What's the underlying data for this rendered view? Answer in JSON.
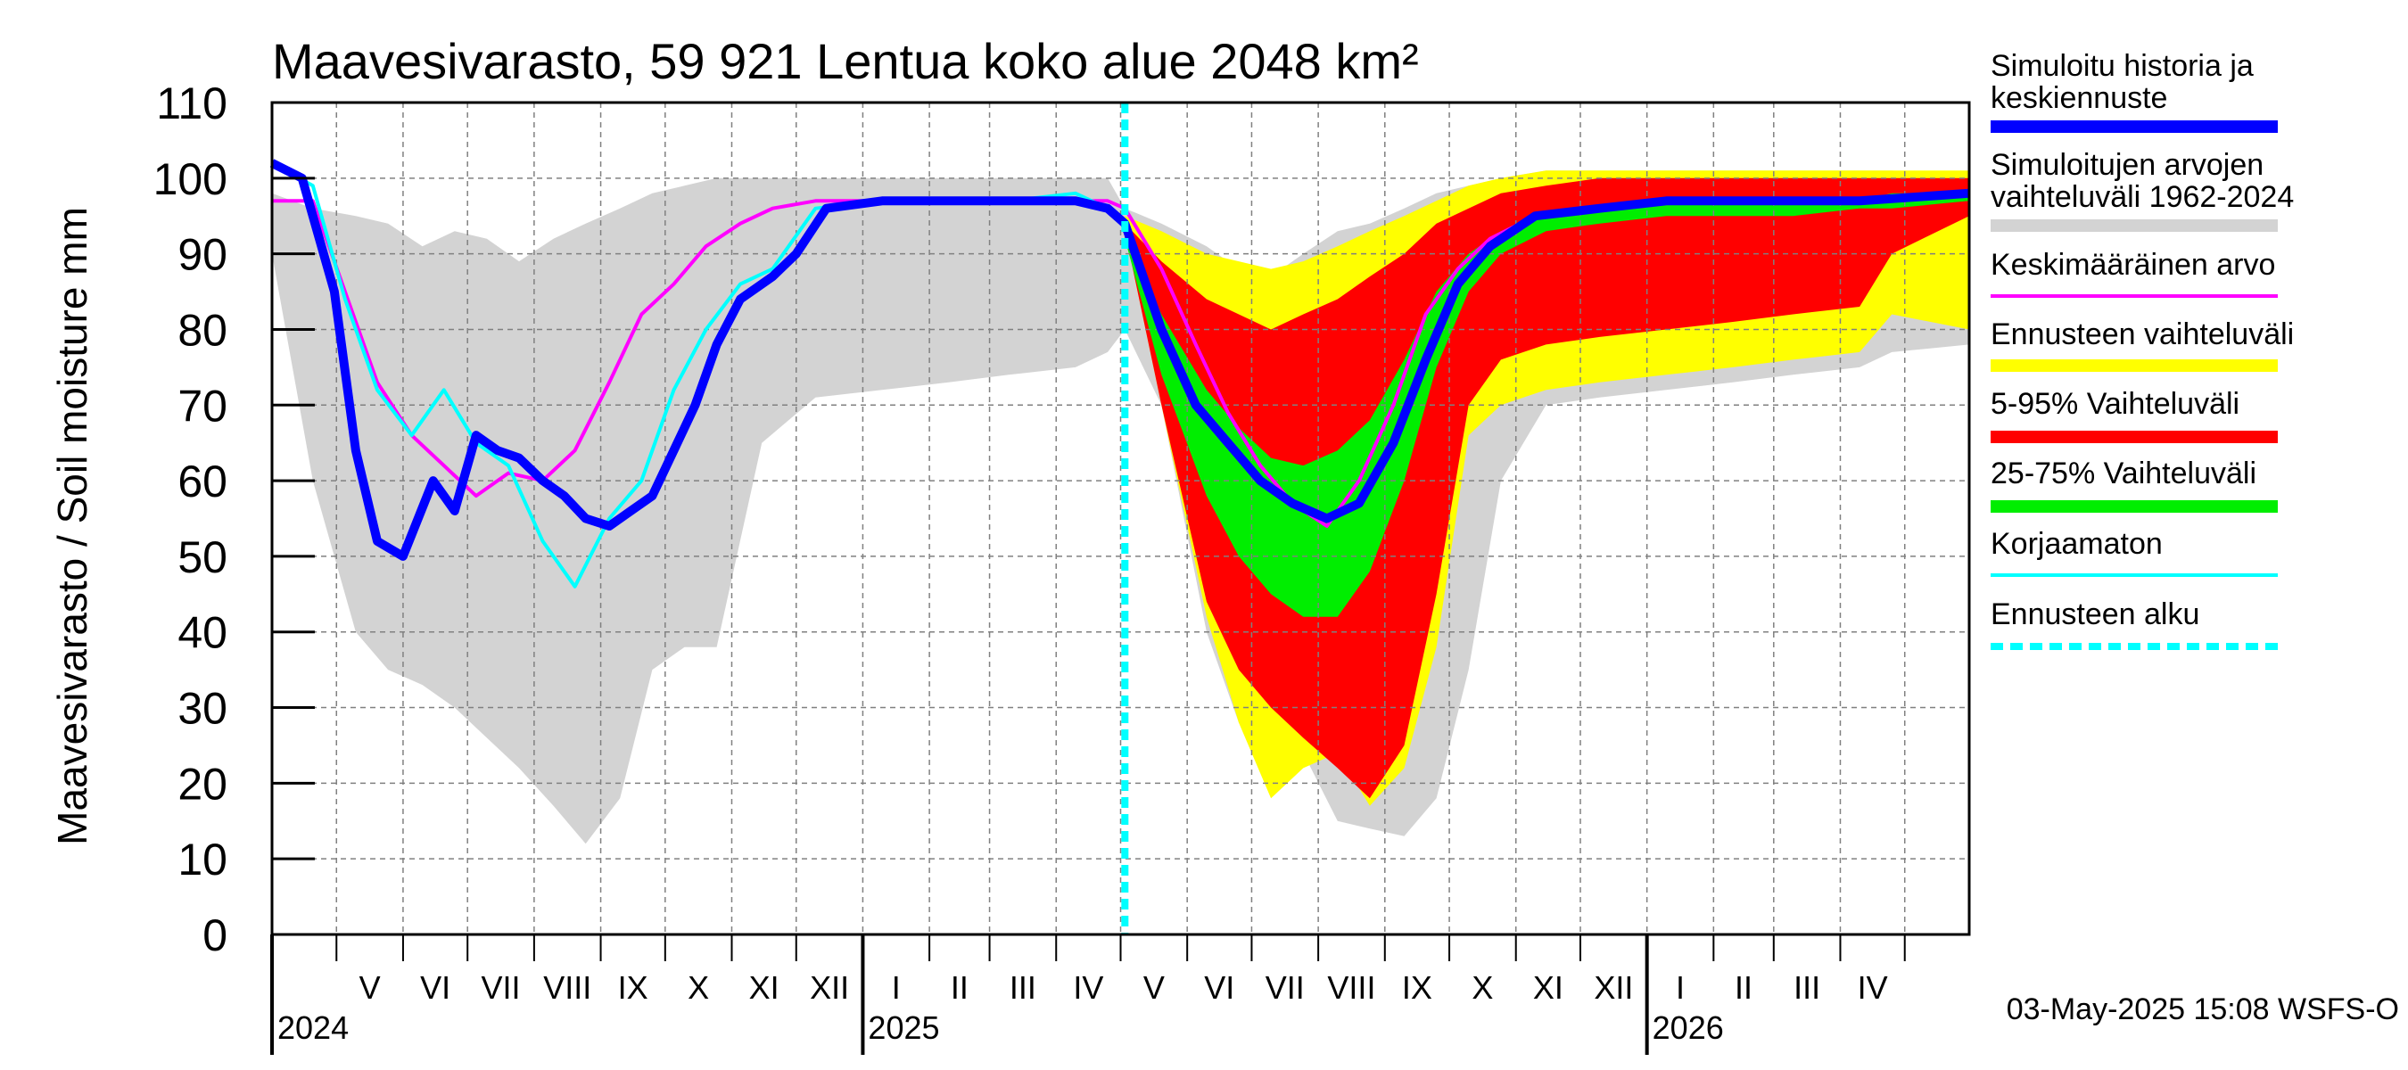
{
  "chart_data": {
    "type": "area",
    "title": "Maavesivarasto, 59 921 Lentua koko alue 2048 km²",
    "ylabel": "Maavesivarasto / Soil moisture   mm",
    "ylim": [
      0,
      110
    ],
    "yticks": [
      0,
      10,
      20,
      30,
      40,
      50,
      60,
      70,
      80,
      90,
      100,
      110
    ],
    "xlim": [
      "2024-04-01",
      "2026-05-31"
    ],
    "grid": true,
    "legend_position": "right",
    "forecast_start": "2025-05-03",
    "months": [
      {
        "label": "V",
        "start": "2024-05-01",
        "end": "2024-06-01"
      },
      {
        "label": "VI",
        "start": "2024-06-01",
        "end": "2024-07-01"
      },
      {
        "label": "VII",
        "start": "2024-07-01",
        "end": "2024-08-01"
      },
      {
        "label": "VIII",
        "start": "2024-08-01",
        "end": "2024-09-01"
      },
      {
        "label": "IX",
        "start": "2024-09-01",
        "end": "2024-10-01"
      },
      {
        "label": "X",
        "start": "2024-10-01",
        "end": "2024-11-01"
      },
      {
        "label": "XI",
        "start": "2024-11-01",
        "end": "2024-12-01"
      },
      {
        "label": "XII",
        "start": "2024-12-01",
        "end": "2025-01-01"
      },
      {
        "label": "I",
        "start": "2025-01-01",
        "end": "2025-02-01"
      },
      {
        "label": "II",
        "start": "2025-02-01",
        "end": "2025-03-01"
      },
      {
        "label": "III",
        "start": "2025-03-01",
        "end": "2025-04-01"
      },
      {
        "label": "IV",
        "start": "2025-04-01",
        "end": "2025-05-01"
      },
      {
        "label": "V",
        "start": "2025-05-01",
        "end": "2025-06-01"
      },
      {
        "label": "VI",
        "start": "2025-06-01",
        "end": "2025-07-01"
      },
      {
        "label": "VII",
        "start": "2025-07-01",
        "end": "2025-08-01"
      },
      {
        "label": "VIII",
        "start": "2025-08-01",
        "end": "2025-09-01"
      },
      {
        "label": "IX",
        "start": "2025-09-01",
        "end": "2025-10-01"
      },
      {
        "label": "X",
        "start": "2025-10-01",
        "end": "2025-11-01"
      },
      {
        "label": "XI",
        "start": "2025-11-01",
        "end": "2025-12-01"
      },
      {
        "label": "XII",
        "start": "2025-12-01",
        "end": "2026-01-01"
      },
      {
        "label": "I",
        "start": "2026-01-01",
        "end": "2026-02-01"
      },
      {
        "label": "II",
        "start": "2026-02-01",
        "end": "2026-03-01"
      },
      {
        "label": "III",
        "start": "2026-03-01",
        "end": "2026-04-01"
      },
      {
        "label": "IV",
        "start": "2026-04-01",
        "end": "2026-05-01"
      }
    ],
    "years": [
      {
        "label": "2024",
        "date": "2024-04-01"
      },
      {
        "label": "2025",
        "date": "2025-01-01"
      },
      {
        "label": "2026",
        "date": "2026-01-01"
      }
    ],
    "bands": [
      {
        "name": "Simuloitujen arvojen vaihteluväli 1962-2024",
        "color": "#d3d3d3",
        "x": [
          "2024-04-01",
          "2024-04-20",
          "2024-05-10",
          "2024-05-25",
          "2024-06-10",
          "2024-06-25",
          "2024-07-10",
          "2024-07-25",
          "2024-08-10",
          "2024-08-25",
          "2024-09-10",
          "2024-09-25",
          "2024-10-10",
          "2024-10-25",
          "2024-11-15",
          "2024-12-10",
          "2025-01-10",
          "2025-02-10",
          "2025-03-10",
          "2025-04-10",
          "2025-04-25",
          "2025-05-03",
          "2025-05-20",
          "2025-06-10",
          "2025-06-25",
          "2025-07-10",
          "2025-07-25",
          "2025-08-10",
          "2025-08-25",
          "2025-09-10",
          "2025-09-25",
          "2025-10-10",
          "2025-10-25",
          "2025-11-15",
          "2025-12-10",
          "2026-01-10",
          "2026-02-10",
          "2026-03-10",
          "2026-04-10",
          "2026-04-25",
          "2026-05-31"
        ],
        "high": [
          98,
          96,
          95,
          94,
          91,
          93,
          92,
          89,
          92,
          94,
          96,
          98,
          99,
          100,
          100,
          100,
          100,
          100,
          100,
          100,
          100,
          96,
          94,
          91,
          88,
          87,
          90,
          93,
          94,
          96,
          98,
          99,
          100,
          101,
          101,
          101,
          101,
          101,
          101,
          101,
          100
        ],
        "low": [
          90,
          60,
          40,
          35,
          33,
          30,
          26,
          22,
          17,
          12,
          18,
          35,
          38,
          38,
          65,
          71,
          72,
          73,
          74,
          75,
          77,
          80,
          70,
          40,
          28,
          26,
          24,
          15,
          14,
          13,
          18,
          35,
          60,
          70,
          71,
          72,
          73,
          74,
          75,
          77,
          78
        ]
      },
      {
        "name": "Ennusteen vaihteluväli",
        "color": "#ffff00",
        "x": [
          "2025-05-03",
          "2025-05-20",
          "2025-06-10",
          "2025-06-25",
          "2025-07-10",
          "2025-07-25",
          "2025-08-10",
          "2025-08-25",
          "2025-09-10",
          "2025-09-25",
          "2025-10-10",
          "2025-10-25",
          "2025-11-15",
          "2025-12-10",
          "2026-01-10",
          "2026-02-10",
          "2026-03-10",
          "2026-04-10",
          "2026-04-25",
          "2026-05-31"
        ],
        "high": [
          95,
          93,
          90,
          89,
          88,
          89,
          91,
          93,
          95,
          97,
          99,
          100,
          101,
          101,
          101,
          101,
          101,
          101,
          101,
          101
        ],
        "low": [
          93,
          70,
          42,
          28,
          18,
          22,
          24,
          17,
          22,
          38,
          66,
          70,
          72,
          73,
          74,
          75,
          76,
          77,
          82,
          80
        ]
      },
      {
        "name": "5-95% Vaihteluväli",
        "color": "#ff0000",
        "x": [
          "2025-05-03",
          "2025-05-20",
          "2025-06-10",
          "2025-06-25",
          "2025-07-10",
          "2025-07-25",
          "2025-08-10",
          "2025-08-25",
          "2025-09-10",
          "2025-09-25",
          "2025-10-10",
          "2025-10-25",
          "2025-11-15",
          "2025-12-10",
          "2026-01-10",
          "2026-02-10",
          "2026-03-10",
          "2026-04-10",
          "2026-04-25",
          "2026-05-31"
        ],
        "high": [
          94,
          89,
          84,
          82,
          80,
          82,
          84,
          87,
          90,
          94,
          96,
          98,
          99,
          100,
          100,
          100,
          100,
          100,
          100,
          100
        ],
        "low": [
          93,
          70,
          44,
          35,
          30,
          26,
          22,
          18,
          25,
          45,
          70,
          76,
          78,
          79,
          80,
          81,
          82,
          83,
          90,
          95
        ]
      },
      {
        "name": "25-75% Vaihteluväli",
        "color": "#00ee00",
        "x": [
          "2025-05-03",
          "2025-05-20",
          "2025-06-10",
          "2025-06-25",
          "2025-07-10",
          "2025-07-25",
          "2025-08-10",
          "2025-08-25",
          "2025-09-10",
          "2025-09-25",
          "2025-10-10",
          "2025-10-25",
          "2025-11-15",
          "2025-12-10",
          "2026-01-10",
          "2026-02-10",
          "2026-03-10",
          "2026-04-10",
          "2026-04-25",
          "2026-05-31"
        ],
        "high": [
          93,
          82,
          72,
          67,
          63,
          62,
          64,
          68,
          76,
          85,
          90,
          93,
          95,
          96,
          97,
          97,
          97,
          97,
          98,
          98
        ],
        "low": [
          92,
          74,
          58,
          50,
          45,
          42,
          42,
          48,
          60,
          75,
          85,
          90,
          93,
          94,
          95,
          95,
          95,
          96,
          96,
          97
        ]
      }
    ],
    "series": [
      {
        "name": "Keskimääräinen arvo",
        "color": "#ff00ff",
        "x": [
          "2024-04-01",
          "2024-04-20",
          "2024-05-05",
          "2024-05-20",
          "2024-06-05",
          "2024-06-20",
          "2024-07-05",
          "2024-07-20",
          "2024-08-05",
          "2024-08-20",
          "2024-09-05",
          "2024-09-20",
          "2024-10-05",
          "2024-10-20",
          "2024-11-05",
          "2024-11-20",
          "2024-12-10",
          "2025-01-10",
          "2025-02-10",
          "2025-03-10",
          "2025-04-10",
          "2025-04-25",
          "2025-05-03",
          "2025-05-20",
          "2025-06-05",
          "2025-06-20",
          "2025-07-05",
          "2025-07-20",
          "2025-08-05",
          "2025-08-20",
          "2025-09-05",
          "2025-09-20",
          "2025-10-05",
          "2025-10-20",
          "2025-11-10",
          "2025-12-10",
          "2026-01-10",
          "2026-02-10",
          "2026-03-10",
          "2026-04-10",
          "2026-05-31"
        ],
        "y": [
          97,
          97,
          85,
          73,
          66,
          62,
          58,
          61,
          60,
          64,
          73,
          82,
          86,
          91,
          94,
          96,
          97,
          97,
          97,
          97,
          97,
          97,
          96,
          88,
          78,
          69,
          62,
          57,
          54,
          60,
          70,
          82,
          88,
          92,
          95,
          96,
          97,
          97,
          97,
          97,
          98
        ]
      },
      {
        "name": "Korjaamaton",
        "color": "#00ffff",
        "x": [
          "2024-04-01",
          "2024-04-20",
          "2024-05-05",
          "2024-05-20",
          "2024-06-05",
          "2024-06-20",
          "2024-07-05",
          "2024-07-20",
          "2024-08-05",
          "2024-08-20",
          "2024-09-05",
          "2024-09-20",
          "2024-10-05",
          "2024-10-20",
          "2024-11-05",
          "2024-11-20",
          "2024-12-10",
          "2025-01-10",
          "2025-02-10",
          "2025-03-10",
          "2025-04-10",
          "2025-04-25",
          "2025-05-03"
        ],
        "y": [
          102,
          99,
          84,
          72,
          66,
          72,
          65,
          62,
          52,
          46,
          55,
          60,
          72,
          80,
          86,
          88,
          96,
          97,
          97,
          97,
          98,
          96,
          94
        ]
      },
      {
        "name": "Simuloitu historia ja keskiennuste",
        "color": "#0000ff",
        "x": [
          "2024-04-01",
          "2024-04-15",
          "2024-04-30",
          "2024-05-10",
          "2024-05-20",
          "2024-06-01",
          "2024-06-15",
          "2024-06-25",
          "2024-07-05",
          "2024-07-15",
          "2024-07-25",
          "2024-08-05",
          "2024-08-15",
          "2024-08-25",
          "2024-09-05",
          "2024-09-15",
          "2024-09-25",
          "2024-10-05",
          "2024-10-15",
          "2024-10-25",
          "2024-11-05",
          "2024-11-20",
          "2024-12-01",
          "2024-12-15",
          "2025-01-10",
          "2025-02-10",
          "2025-03-10",
          "2025-04-10",
          "2025-04-25",
          "2025-05-03",
          "2025-05-20",
          "2025-06-05",
          "2025-06-20",
          "2025-07-05",
          "2025-07-20",
          "2025-08-05",
          "2025-08-20",
          "2025-09-05",
          "2025-09-20",
          "2025-10-05",
          "2025-10-20",
          "2025-11-10",
          "2025-12-10",
          "2026-01-10",
          "2026-02-10",
          "2026-03-10",
          "2026-04-10",
          "2026-05-31"
        ],
        "y": [
          102,
          100,
          85,
          64,
          52,
          50,
          60,
          56,
          66,
          64,
          63,
          60,
          58,
          55,
          54,
          56,
          58,
          64,
          70,
          78,
          84,
          87,
          90,
          96,
          97,
          97,
          97,
          97,
          96,
          94,
          80,
          70,
          65,
          60,
          57,
          55,
          57,
          65,
          76,
          86,
          91,
          95,
          96,
          97,
          97,
          97,
          97,
          98
        ]
      }
    ],
    "legend": [
      {
        "label": "Simuloitu historia ja keskiennuste",
        "color": "#0000ff",
        "style": "solid"
      },
      {
        "label": "Simuloitujen arvojen vaihteluväli 1962-2024",
        "color": "#d3d3d3",
        "style": "solid"
      },
      {
        "label": "Keskimääräinen arvo",
        "color": "#ff00ff",
        "style": "thin"
      },
      {
        "label": "Ennusteen vaihteluväli",
        "color": "#ffff00",
        "style": "solid"
      },
      {
        "label": "5-95% Vaihteluväli",
        "color": "#ff0000",
        "style": "solid"
      },
      {
        "label": "25-75% Vaihteluväli",
        "color": "#00ee00",
        "style": "solid"
      },
      {
        "label": "Korjaamaton",
        "color": "#00ffff",
        "style": "thin"
      },
      {
        "label": "Ennusteen alku",
        "color": "#00ffff",
        "style": "dashed"
      }
    ],
    "footer": "03-May-2025 15:08 WSFS-O"
  }
}
